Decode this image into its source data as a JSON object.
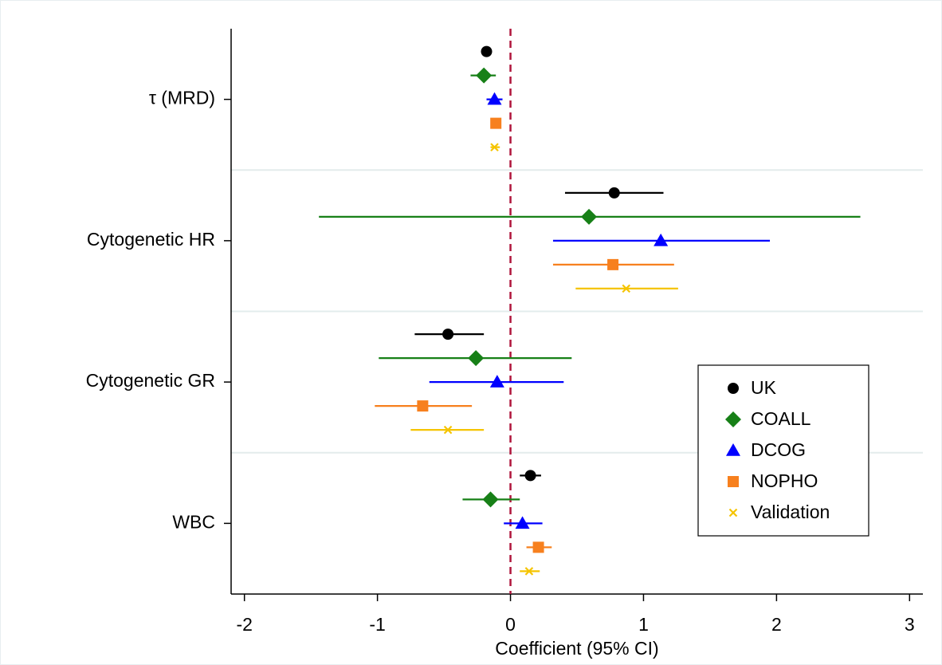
{
  "chart_data": {
    "type": "forest",
    "x_label": "Coefficient (95% CI)",
    "categories": [
      "τ (MRD)",
      "Cytogenetic HR",
      "Cytogenetic GR",
      "WBC"
    ],
    "xlim": [
      -2.1,
      3.1
    ],
    "xticks": [
      -2,
      -1,
      0,
      1,
      2,
      3
    ],
    "reference_line": 0,
    "legend_position": "lower right",
    "series": [
      {
        "name": "UK",
        "color": "#000000",
        "marker": "circle",
        "values": [
          -0.18,
          0.78,
          -0.47,
          0.15
        ],
        "lower": [
          -0.2,
          0.41,
          -0.72,
          0.07
        ],
        "upper": [
          -0.16,
          1.15,
          -0.2,
          0.23
        ]
      },
      {
        "name": "COALL",
        "color": "#178017",
        "marker": "diamond",
        "values": [
          -0.2,
          0.59,
          -0.26,
          -0.15
        ],
        "lower": [
          -0.3,
          -1.44,
          -0.99,
          -0.36
        ],
        "upper": [
          -0.11,
          2.63,
          0.46,
          0.07
        ]
      },
      {
        "name": "DCOG",
        "color": "#0000ff",
        "marker": "triangle",
        "values": [
          -0.12,
          1.13,
          -0.1,
          0.09
        ],
        "lower": [
          -0.18,
          0.32,
          -0.61,
          -0.05
        ],
        "upper": [
          -0.06,
          1.95,
          0.4,
          0.24
        ]
      },
      {
        "name": "NOPHO",
        "color": "#f7801e",
        "marker": "square",
        "values": [
          -0.11,
          0.77,
          -0.66,
          0.21
        ],
        "lower": [
          -0.13,
          0.32,
          -1.02,
          0.12
        ],
        "upper": [
          -0.09,
          1.23,
          -0.29,
          0.31
        ]
      },
      {
        "name": "Validation",
        "color": "#f5c400",
        "marker": "x",
        "values": [
          -0.12,
          0.87,
          -0.47,
          0.14
        ],
        "lower": [
          -0.15,
          0.49,
          -0.75,
          0.07
        ],
        "upper": [
          -0.08,
          1.26,
          -0.2,
          0.22
        ]
      }
    ]
  }
}
